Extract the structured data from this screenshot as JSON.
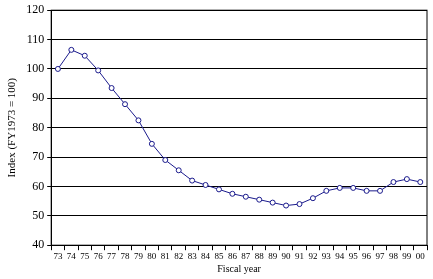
{
  "chart_data": {
    "type": "line",
    "x_label": "Fiscal year",
    "y_label": "Index (FY1973 = 100)",
    "categories": [
      "73",
      "74",
      "75",
      "76",
      "77",
      "78",
      "79",
      "80",
      "81",
      "82",
      "83",
      "84",
      "85",
      "86",
      "87",
      "88",
      "89",
      "90",
      "91",
      "92",
      "93",
      "94",
      "95",
      "96",
      "97",
      "98",
      "99",
      "00"
    ],
    "values": [
      100,
      106.5,
      104.5,
      99.5,
      93.5,
      88,
      82.5,
      74.5,
      69,
      65.5,
      62,
      60.5,
      59,
      57.5,
      56.5,
      55.5,
      54.5,
      53.5,
      54,
      56,
      58.5,
      59.5,
      59.5,
      58.5,
      58.5,
      61.5,
      62.5,
      61.5
    ],
    "color": "#1a1a8c",
    "marker": "circle",
    "line_style": "solid",
    "ylim": [
      40,
      120
    ],
    "yticks": [
      40,
      50,
      60,
      70,
      80,
      90,
      100,
      110,
      120
    ],
    "grid": true
  }
}
